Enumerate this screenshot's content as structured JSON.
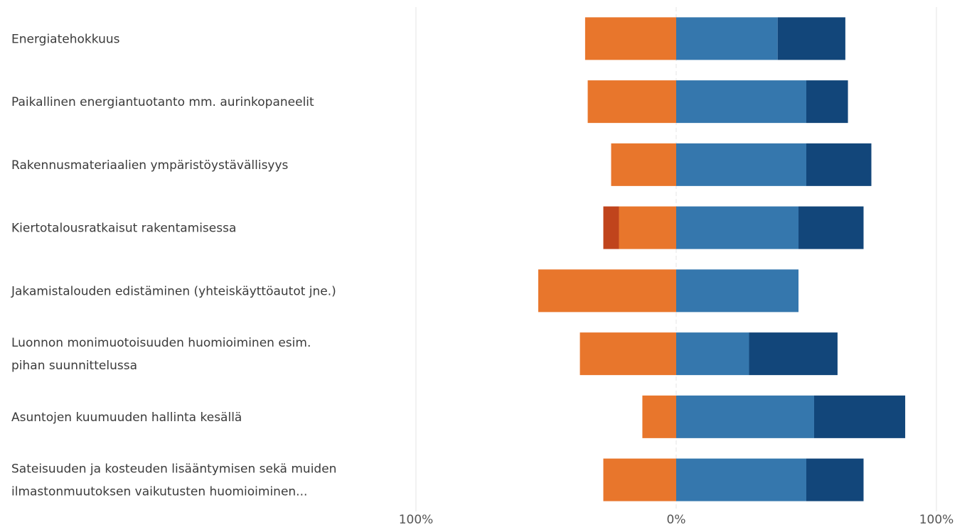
{
  "chart_data": {
    "type": "bar",
    "orientation": "horizontal",
    "stacked": "diverging",
    "categories": [
      "Energiatehokkuus",
      "Paikallinen energiantuotanto mm. aurinkopaneelit",
      "Rakennusmateriaalien ympäristöystävällisyys",
      "Kiertotalousratkaisut rakentamisessa",
      "Jakamistalouden edistäminen (yhteiskäyttöautot jne.)",
      "Luonnon monimuotoisuuden huomioiminen esim. pihan suunnittelussa",
      "Asuntojen kuumuuden hallinta kesällä",
      "Sateisuuden ja kosteuden lisääntymisen sekä muiden ilmastonmuutoksen vaikutusten  huomioiminen..."
    ],
    "category_lines": [
      [
        "Energiatehokkuus"
      ],
      [
        "Paikallinen energiantuotanto mm. aurinkopaneelit"
      ],
      [
        "Rakennusmateriaalien ympäristöystävällisyys"
      ],
      [
        "Kiertotalousratkaisut rakentamisessa"
      ],
      [
        "Jakamistalouden edistäminen (yhteiskäyttöautot jne.)"
      ],
      [
        "Luonnon monimuotoisuuden huomioiminen esim.",
        "pihan suunnittelussa"
      ],
      [
        "Asuntojen kuumuuden hallinta kesällä"
      ],
      [
        "Sateisuuden ja kosteuden lisääntymisen sekä muiden",
        "ilmastonmuutoksen vaikutusten  huomioiminen..."
      ]
    ],
    "series": [
      {
        "side": "negative",
        "color": "#c0441c",
        "values": [
          0,
          0,
          0,
          6,
          0,
          0,
          0,
          0
        ]
      },
      {
        "side": "negative",
        "color": "#e8762c",
        "values": [
          35,
          34,
          25,
          22,
          53,
          37,
          13,
          28
        ]
      },
      {
        "side": "positive",
        "color": "#3577ad",
        "values": [
          39,
          50,
          50,
          47,
          47,
          28,
          53,
          50
        ]
      },
      {
        "side": "positive",
        "color": "#12467a",
        "values": [
          26,
          16,
          25,
          25,
          0,
          34,
          35,
          22
        ]
      }
    ],
    "xlim": [
      -100,
      100
    ],
    "ticks": [
      {
        "value": -100,
        "label": "100%"
      },
      {
        "value": 0,
        "label": "0%"
      },
      {
        "value": 100,
        "label": "100%"
      }
    ],
    "grid": true,
    "legend": "none",
    "title": "",
    "xlabel": "",
    "ylabel": ""
  }
}
